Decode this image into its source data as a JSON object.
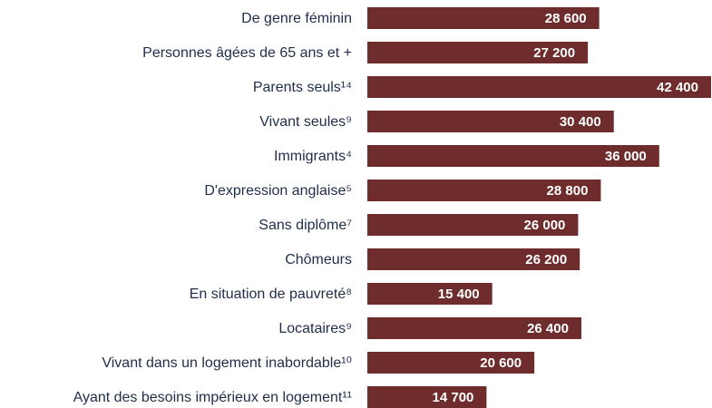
{
  "chart_data": {
    "type": "bar",
    "orientation": "horizontal",
    "categories": [
      "De genre féminin",
      "Personnes âgées de 65 ans et +",
      "Parents seuls¹⁴",
      "Vivant seules⁹",
      "Immigrants⁴",
      "D'expression anglaise⁵",
      "Sans diplôme⁷",
      "Chômeurs",
      "En situation de pauvreté⁸",
      "Locataires⁹",
      "Vivant dans un logement inabordable¹⁰",
      "Ayant des besoins impérieux en logement¹¹"
    ],
    "values": [
      28600,
      27200,
      42400,
      30400,
      36000,
      28800,
      26000,
      26200,
      15400,
      26400,
      20600,
      14700
    ],
    "value_labels": [
      "28 600",
      "27 200",
      "42 400",
      "30 400",
      "36 000",
      "28 800",
      "26 000",
      "26 200",
      "15 400",
      "26 400",
      "20 600",
      "14 700"
    ],
    "color": "#6e2c2c"
  }
}
